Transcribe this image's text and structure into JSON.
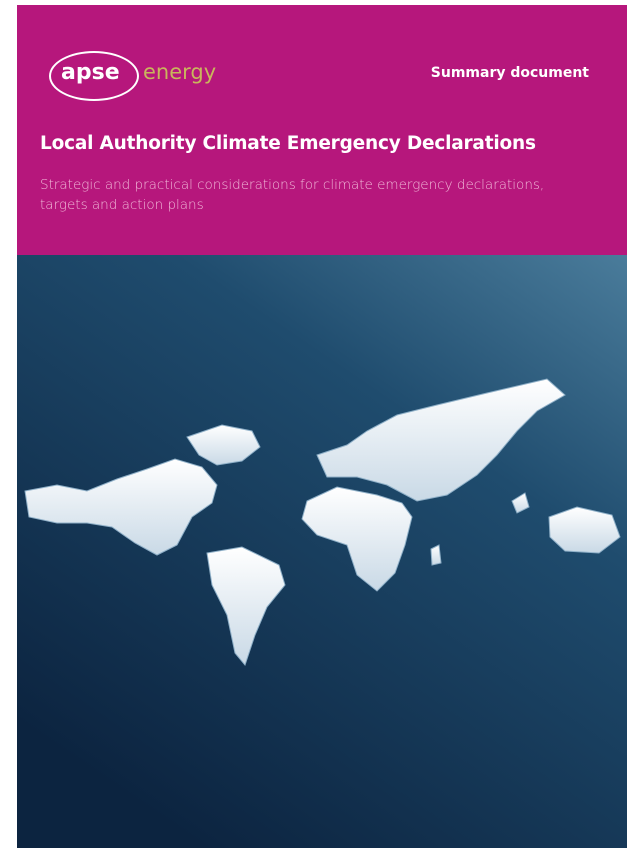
{
  "header": {
    "logo": {
      "primary": "apse",
      "secondary": "energy"
    },
    "label": "Summary document"
  },
  "title": "Local Authority Climate Emergency Declarations",
  "subtitle": "Strategic and practical considerations for climate emergency declarations, targets and action plans"
}
